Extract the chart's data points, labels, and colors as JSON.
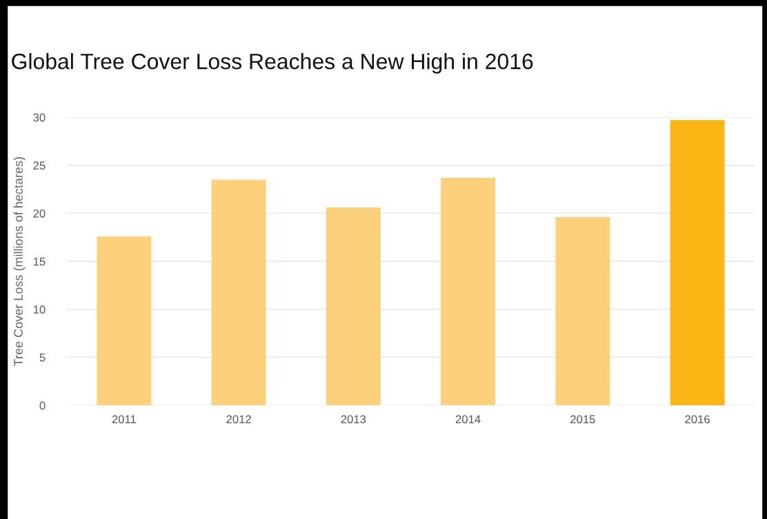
{
  "chart_data": {
    "type": "bar",
    "title": "Global Tree Cover Loss Reaches a New High in 2016",
    "ylabel": "Tree Cover Loss (millions of hectares)",
    "categories": [
      "2011",
      "2012",
      "2013",
      "2014",
      "2015",
      "2016"
    ],
    "values": [
      17.6,
      23.5,
      20.6,
      23.7,
      19.6,
      29.7
    ],
    "colors": [
      "#fdd07c",
      "#fdd07c",
      "#fdd07c",
      "#fdd07c",
      "#fdd07c",
      "#fbb616"
    ],
    "ylim": [
      0,
      30
    ],
    "yticks": [
      0,
      5,
      10,
      15,
      20,
      25,
      30
    ],
    "grid": "y"
  }
}
